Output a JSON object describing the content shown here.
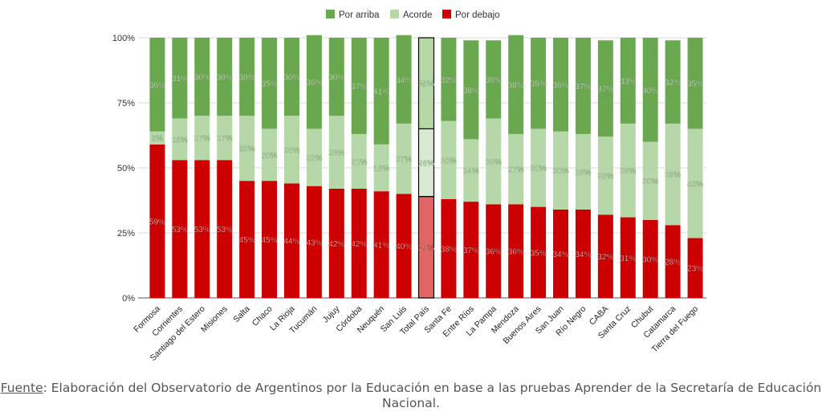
{
  "chart_data": {
    "type": "bar",
    "stacked": true,
    "orientation": "vertical",
    "legend_position": "top-center",
    "grid": true,
    "ylim": [
      0,
      100
    ],
    "y_ticks": [
      "0%",
      "25%",
      "50%",
      "75%",
      "100%"
    ],
    "categories": [
      "Formosa",
      "Corrientes",
      "Santiago del Estero",
      "Misiones",
      "Salta",
      "Chaco",
      "La Rioja",
      "Tucumán",
      "Jujuy",
      "Córdoba",
      "Neuquén",
      "San Luis",
      "Total País",
      "Santa Fe",
      "Entre Ríos",
      "La Pampa",
      "Mendoza",
      "Buenos Aires",
      "San Juan",
      "Río Negro",
      "CABA",
      "Santa Cruz",
      "Chubut",
      "Catamarca",
      "Tierra del Fuego"
    ],
    "highlight_category": "Total País",
    "series": [
      {
        "name": "Por arriba",
        "color": "#6aa84f",
        "highlight_color": "#b6d7a8",
        "values": [
          36,
          31,
          30,
          30,
          30,
          35,
          30,
          36,
          30,
          37,
          41,
          34,
          35,
          32,
          38,
          30,
          38,
          35,
          36,
          37,
          37,
          33,
          40,
          32,
          35
        ],
        "labels": [
          "36%",
          "31%",
          "30%",
          "30%",
          "30%",
          "35%",
          "30%",
          "36%",
          "30%",
          "37%",
          "41%",
          "34%",
          "35%",
          "32%",
          "38%",
          "30%",
          "38%",
          "35%",
          "36%",
          "37%",
          "37%",
          "33%",
          "40%",
          "32%",
          "35%"
        ]
      },
      {
        "name": "Acorde",
        "color": "#b6d7a8",
        "highlight_color": "#d9ead3",
        "values": [
          5,
          16,
          17,
          17,
          25,
          20,
          26,
          22,
          28,
          21,
          18,
          27,
          26,
          30,
          24,
          33,
          27,
          30,
          30,
          29,
          30,
          36,
          30,
          39,
          42
        ],
        "labels": [
          "5%",
          "16%",
          "17%",
          "17%",
          "25%",
          "20%",
          "26%",
          "22%",
          "28%",
          "21%",
          "18%",
          "27%",
          "26%",
          "30%",
          "24%",
          "33%",
          "27%",
          "30%",
          "30%",
          "29%",
          "30%",
          "36%",
          "30%",
          "39%",
          "42%"
        ]
      },
      {
        "name": "Por debajo",
        "color": "#cc0000",
        "highlight_color": "#e06666",
        "values": [
          59,
          53,
          53,
          53,
          45,
          45,
          44,
          43,
          42,
          42,
          41,
          40,
          39,
          38,
          37,
          36,
          36,
          35,
          34,
          34,
          32,
          31,
          30,
          28,
          23
        ],
        "labels": [
          "59%",
          "53%",
          "53%",
          "53%",
          "45%",
          "45%",
          "44%",
          "43%",
          "42%",
          "42%",
          "41%",
          "40%",
          "39%",
          "38%",
          "37%",
          "36%",
          "36%",
          "35%",
          "34%",
          "34%",
          "32%",
          "31%",
          "30%",
          "28%",
          "23%"
        ]
      }
    ]
  },
  "source": {
    "label": "Fuente",
    "text": ": Elaboración del Observatorio de Argentinos por la Educación en base a las pruebas Aprender de la Secretaría de Educación Nacional."
  }
}
